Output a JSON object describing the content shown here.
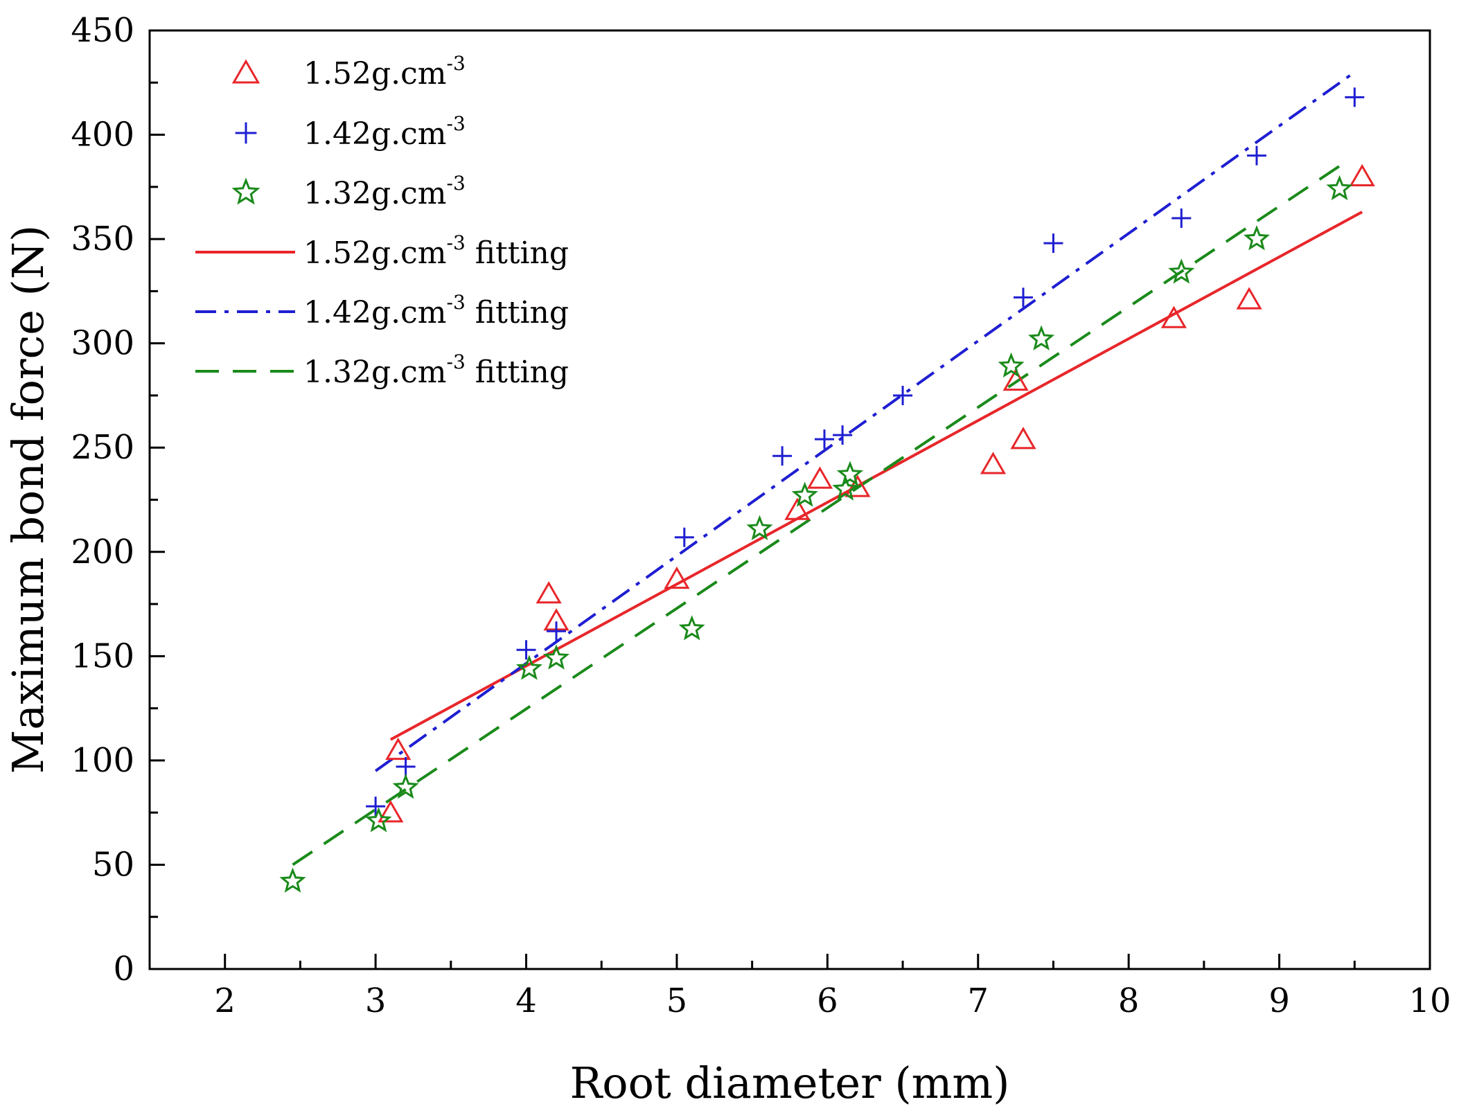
{
  "chart_data": {
    "type": "scatter",
    "title": "",
    "xlabel": "Root diameter (mm)",
    "ylabel": "Maximum bond force (N)",
    "xlim": [
      1.5,
      10
    ],
    "ylim": [
      0,
      450
    ],
    "xticks": [
      2,
      3,
      4,
      5,
      6,
      7,
      8,
      9,
      10
    ],
    "yticks": [
      0,
      50,
      100,
      150,
      200,
      250,
      300,
      350,
      400,
      450
    ],
    "grid": false,
    "legend_position": "top-left",
    "series": [
      {
        "name": "1.52g.cm",
        "superscript": "-3",
        "marker": "triangle",
        "color": "#e8262a",
        "points": [
          [
            3.1,
            75
          ],
          [
            3.15,
            105
          ],
          [
            4.15,
            180
          ],
          [
            4.2,
            167
          ],
          [
            5.0,
            187
          ],
          [
            5.8,
            220
          ],
          [
            5.95,
            235
          ],
          [
            6.2,
            231
          ],
          [
            7.1,
            242
          ],
          [
            7.25,
            282
          ],
          [
            7.3,
            254
          ],
          [
            8.3,
            312
          ],
          [
            8.8,
            321
          ],
          [
            9.55,
            380
          ]
        ]
      },
      {
        "name": "1.42g.cm",
        "superscript": "-3",
        "marker": "plus",
        "color": "#1e1ed2",
        "points": [
          [
            3.0,
            78
          ],
          [
            3.2,
            97
          ],
          [
            4.0,
            153
          ],
          [
            4.2,
            162
          ],
          [
            5.05,
            207
          ],
          [
            5.7,
            246
          ],
          [
            5.98,
            254
          ],
          [
            6.1,
            256
          ],
          [
            6.5,
            275
          ],
          [
            7.3,
            322
          ],
          [
            7.5,
            348
          ],
          [
            8.35,
            360
          ],
          [
            8.85,
            390
          ],
          [
            9.5,
            418
          ]
        ]
      },
      {
        "name": "1.32g.cm",
        "superscript": "-3",
        "marker": "star",
        "color": "#1a8a1a",
        "points": [
          [
            2.45,
            42
          ],
          [
            3.02,
            71
          ],
          [
            3.2,
            87
          ],
          [
            4.02,
            144
          ],
          [
            4.2,
            149
          ],
          [
            5.1,
            163
          ],
          [
            5.55,
            211
          ],
          [
            5.85,
            227
          ],
          [
            6.12,
            230
          ],
          [
            6.15,
            237
          ],
          [
            7.22,
            289
          ],
          [
            7.42,
            302
          ],
          [
            8.35,
            334
          ],
          [
            8.85,
            350
          ],
          [
            9.4,
            374
          ]
        ]
      }
    ],
    "fits": [
      {
        "name": "1.52g.cm",
        "superscript": "-3",
        "suffix": " fitting",
        "style": "solid",
        "color": "#e8262a",
        "x": [
          3.1,
          9.55
        ],
        "y": [
          110,
          363
        ]
      },
      {
        "name": "1.42g.cm",
        "superscript": "-3",
        "suffix": " fitting",
        "style": "dashdot",
        "color": "#1e1ed2",
        "x": [
          3.0,
          9.5
        ],
        "y": [
          95,
          430
        ]
      },
      {
        "name": "1.32g.cm",
        "superscript": "-3",
        "suffix": " fitting",
        "style": "dashed",
        "color": "#1a8a1a",
        "x": [
          2.45,
          9.4
        ],
        "y": [
          50,
          385
        ]
      }
    ]
  }
}
